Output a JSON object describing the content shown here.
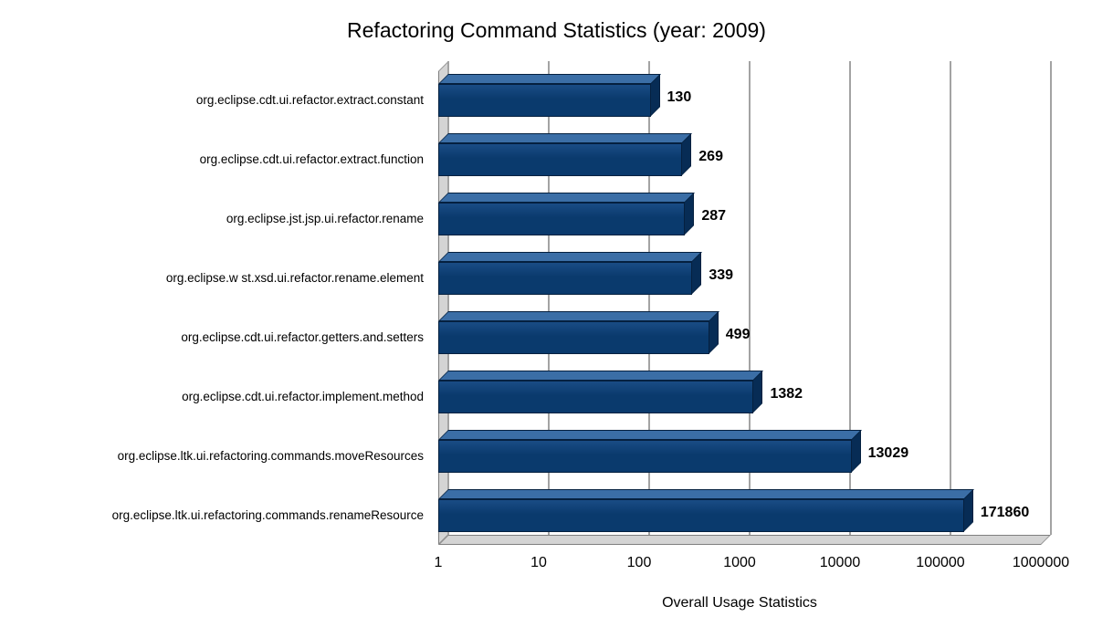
{
  "chart_data": {
    "type": "bar",
    "orientation": "horizontal",
    "style": "3d",
    "title": "Refactoring Command Statistics (year: 2009)",
    "xlabel": "Overall Usage Statistics",
    "x_scale": "log",
    "xlim": [
      1,
      1000000
    ],
    "x_ticks": [
      1,
      10,
      100,
      1000,
      10000,
      100000,
      1000000
    ],
    "x_tick_labels": [
      "1",
      "10",
      "100",
      "1000",
      "10000",
      "100000",
      "1000000"
    ],
    "categories": [
      "org.eclipse.cdt.ui.refactor.extract.constant",
      "org.eclipse.cdt.ui.refactor.extract.function",
      "org.eclipse.jst.jsp.ui.refactor.rename",
      "org.eclipse.w st.xsd.ui.refactor.rename.element",
      "org.eclipse.cdt.ui.refactor.getters.and.setters",
      "org.eclipse.cdt.ui.refactor.implement.method",
      "org.eclipse.ltk.ui.refactoring.commands.moveResources",
      "org.eclipse.ltk.ui.refactoring.commands.renameResource"
    ],
    "values": [
      130,
      269,
      287,
      339,
      499,
      1382,
      13029,
      171860
    ],
    "value_labels": [
      "130",
      "269",
      "287",
      "339",
      "499",
      "1382",
      "13029",
      "171860"
    ],
    "grid": true,
    "legend": false,
    "colors": {
      "bar_front": "#0a3a6d",
      "bar_top": "#3b6ea6",
      "bar_side": "#072c55",
      "wall": "#d4d4d4",
      "wall_edge": "#7f7f7f",
      "gridline": "#a3a3a3",
      "text": "#000000"
    }
  }
}
